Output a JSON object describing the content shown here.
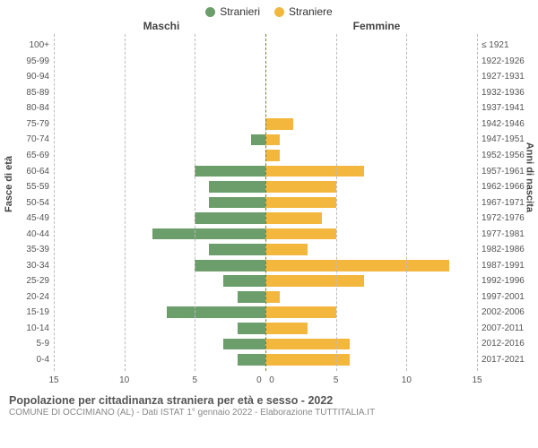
{
  "legend": {
    "male": {
      "label": "Stranieri",
      "color": "#6b9e6b"
    },
    "female": {
      "label": "Straniere",
      "color": "#f3b73e"
    }
  },
  "headers": {
    "left": "Maschi",
    "right": "Femmine"
  },
  "axis_titles": {
    "left": "Fasce di età",
    "right": "Anni di nascita"
  },
  "chart": {
    "type": "population-pyramid",
    "xlim": 15,
    "xticks_left": [
      15,
      10,
      5,
      0
    ],
    "xticks_right": [
      0,
      5,
      10,
      15
    ],
    "grid_color": "#bbbbbb",
    "center_color": "#7a7a2a",
    "background_color": "#ffffff",
    "male_color": "#6b9e6b",
    "female_color": "#f3b73e",
    "rows": [
      {
        "age": "100+",
        "birth": "≤ 1921",
        "m": 0,
        "f": 0
      },
      {
        "age": "95-99",
        "birth": "1922-1926",
        "m": 0,
        "f": 0
      },
      {
        "age": "90-94",
        "birth": "1927-1931",
        "m": 0,
        "f": 0
      },
      {
        "age": "85-89",
        "birth": "1932-1936",
        "m": 0,
        "f": 0
      },
      {
        "age": "80-84",
        "birth": "1937-1941",
        "m": 0,
        "f": 0
      },
      {
        "age": "75-79",
        "birth": "1942-1946",
        "m": 0,
        "f": 2
      },
      {
        "age": "70-74",
        "birth": "1947-1951",
        "m": 1,
        "f": 1
      },
      {
        "age": "65-69",
        "birth": "1952-1956",
        "m": 0,
        "f": 1
      },
      {
        "age": "60-64",
        "birth": "1957-1961",
        "m": 5,
        "f": 7
      },
      {
        "age": "55-59",
        "birth": "1962-1966",
        "m": 4,
        "f": 5
      },
      {
        "age": "50-54",
        "birth": "1967-1971",
        "m": 4,
        "f": 5
      },
      {
        "age": "45-49",
        "birth": "1972-1976",
        "m": 5,
        "f": 4
      },
      {
        "age": "40-44",
        "birth": "1977-1981",
        "m": 8,
        "f": 5
      },
      {
        "age": "35-39",
        "birth": "1982-1986",
        "m": 4,
        "f": 3
      },
      {
        "age": "30-34",
        "birth": "1987-1991",
        "m": 5,
        "f": 13
      },
      {
        "age": "25-29",
        "birth": "1992-1996",
        "m": 3,
        "f": 7
      },
      {
        "age": "20-24",
        "birth": "1997-2001",
        "m": 2,
        "f": 1
      },
      {
        "age": "15-19",
        "birth": "2002-2006",
        "m": 7,
        "f": 5
      },
      {
        "age": "10-14",
        "birth": "2007-2011",
        "m": 2,
        "f": 3
      },
      {
        "age": "5-9",
        "birth": "2012-2016",
        "m": 3,
        "f": 6
      },
      {
        "age": "0-4",
        "birth": "2017-2021",
        "m": 2,
        "f": 6
      }
    ]
  },
  "footer": {
    "title": "Popolazione per cittadinanza straniera per età e sesso - 2022",
    "subtitle": "COMUNE DI OCCIMIANO (AL) - Dati ISTAT 1° gennaio 2022 - Elaborazione TUTTITALIA.IT"
  }
}
